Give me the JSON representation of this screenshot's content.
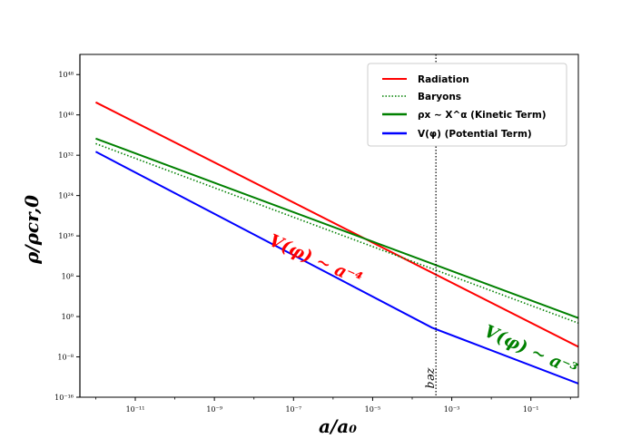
{
  "chart_data": {
    "type": "line",
    "xlabel": "a/a₀",
    "ylabel": "ρ/ρcr,0",
    "xscale": "log",
    "yscale": "log",
    "xlim_log10": [
      -12.4,
      0.2
    ],
    "ylim_log10": [
      -16,
      52
    ],
    "x_ticks": [
      {
        "exp": -11,
        "label": "10⁻¹¹"
      },
      {
        "exp": -9,
        "label": "10⁻⁹"
      },
      {
        "exp": -7,
        "label": "10⁻⁷"
      },
      {
        "exp": -5,
        "label": "10⁻⁵"
      },
      {
        "exp": -3,
        "label": "10⁻³"
      },
      {
        "exp": -1,
        "label": "10⁻¹"
      }
    ],
    "y_ticks": [
      {
        "exp": 48,
        "label": "10⁴⁸"
      },
      {
        "exp": 40,
        "label": "10⁴⁰"
      },
      {
        "exp": 32,
        "label": "10³²"
      },
      {
        "exp": 24,
        "label": "10²⁴"
      },
      {
        "exp": 16,
        "label": "10¹⁶"
      },
      {
        "exp": 8,
        "label": "10⁸"
      },
      {
        "exp": 0,
        "label": "10⁰"
      },
      {
        "exp": -8,
        "label": "10⁻⁸"
      },
      {
        "exp": -16,
        "label": "10⁻¹⁶"
      }
    ],
    "series": [
      {
        "name": "Radiation",
        "color": "#ff0000",
        "style": "solid",
        "points": [
          [
            -12.0,
            42.5
          ],
          [
            0.2,
            -6.0
          ]
        ]
      },
      {
        "name": "Baryons",
        "color": "#008000",
        "style": "dotted",
        "points": [
          [
            -12.0,
            34.3
          ],
          [
            0.2,
            -1.3
          ]
        ]
      },
      {
        "name": "ρx ∼ X^α (Kinetic Term)",
        "color": "#008000",
        "style": "solid",
        "points": [
          [
            -12.0,
            35.3
          ],
          [
            0.2,
            -0.3
          ]
        ]
      },
      {
        "name": "V(φ) (Potential Term)",
        "color": "#0000ff",
        "style": "solid",
        "points": [
          [
            -12.0,
            32.7
          ],
          [
            -3.5,
            -2.2
          ],
          [
            0.2,
            -13.3
          ]
        ]
      }
    ],
    "vlines": [
      {
        "x_log10": -12.4,
        "color": "#000000",
        "style": "solid"
      },
      {
        "x_log10": -3.4,
        "color": "#000000",
        "style": "dotted",
        "label": "zeq"
      }
    ],
    "annotations": [
      {
        "text": "V(φ) ∼ a⁻⁴",
        "color": "#ff0000"
      },
      {
        "text": "V(φ) ∼ a⁻³",
        "color": "#008000"
      }
    ],
    "legend_position": "upper-right",
    "grid": false
  }
}
